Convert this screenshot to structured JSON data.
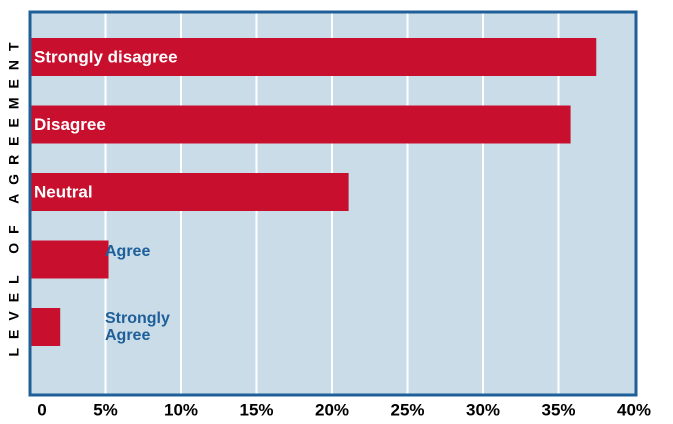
{
  "chart_data": {
    "type": "bar",
    "orientation": "horizontal",
    "ylabel": "LEVEL OF AGREEMENT",
    "categories": [
      "Strongly disagree",
      "Disagree",
      "Neutral",
      "Agree",
      "Strongly Agree"
    ],
    "values": [
      37.5,
      35.8,
      21.1,
      5.2,
      2.0
    ],
    "color": "#c8102e",
    "xlim": [
      0,
      40
    ],
    "xticks": [
      0,
      {
        "value": 5,
        "label": "5%"
      },
      {
        "value": 10,
        "label": "10%"
      },
      {
        "value": 15,
        "label": "15%"
      },
      {
        "value": 20,
        "label": "20%"
      },
      {
        "value": 25,
        "label": "25%"
      },
      {
        "value": 30,
        "label": "30%"
      },
      {
        "value": 35,
        "label": "35%"
      },
      {
        "value": 40,
        "label": "40%"
      }
    ],
    "grid": true
  }
}
